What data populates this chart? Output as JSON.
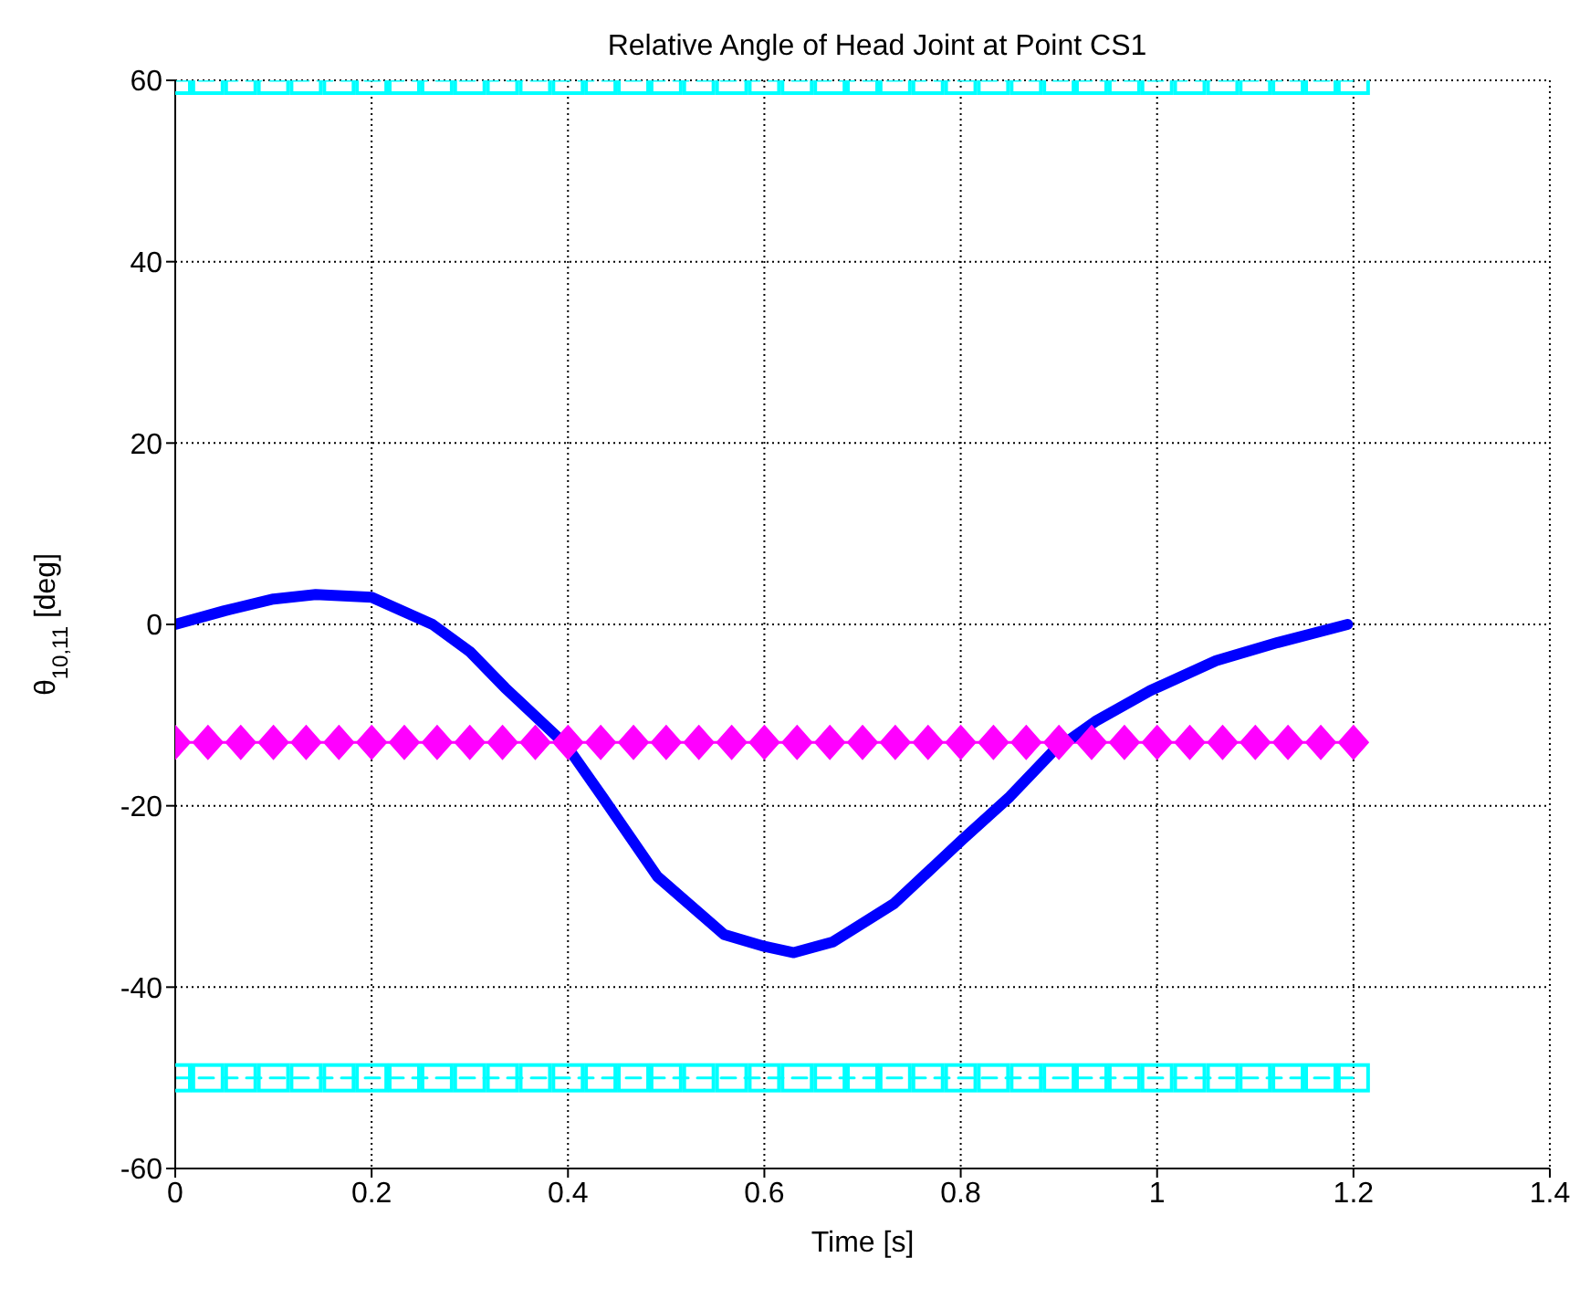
{
  "chart_data": {
    "type": "line",
    "title": "Relative Angle of Head Joint at Point CS1",
    "xlabel": "Time [s]",
    "ylabel": "θ$_{10,11}$ [deg]",
    "xlim": [
      0,
      1.4
    ],
    "xticks": [
      0,
      0.2,
      0.4,
      0.6,
      0.8,
      1,
      1.2,
      1.4
    ],
    "ylim": [
      -60,
      60
    ],
    "yticks": [
      -60,
      -40,
      -20,
      0,
      20,
      40,
      60
    ],
    "grid": true,
    "series": [
      {
        "color": "#0000ff",
        "marker": "none",
        "line_style": "solid",
        "x": [
          0,
          0.05,
          0.1,
          0.143,
          0.2,
          0.262,
          0.3,
          0.336,
          0.398,
          0.435,
          0.491,
          0.559,
          0.6,
          0.63,
          0.67,
          0.732,
          0.801,
          0.85,
          0.894,
          0.937,
          0.993,
          1.06,
          1.123,
          1.194
        ],
        "values": [
          0,
          1.5,
          2.8,
          3.3,
          3,
          0,
          -3,
          -7,
          -13.3,
          -19,
          -27.8,
          -34.2,
          -35.5,
          -36.2,
          -35,
          -30.8,
          -23.8,
          -19,
          -14,
          -10.7,
          -7.3,
          -4,
          -2,
          0
        ]
      },
      {
        "color": "#00ffff",
        "marker": "square",
        "line_style": "dashed",
        "x": [
          0,
          0.0333,
          0.0667,
          0.1,
          0.1333,
          0.1667,
          0.2,
          0.2333,
          0.2667,
          0.3,
          0.3333,
          0.3667,
          0.4,
          0.4333,
          0.4667,
          0.5,
          0.5333,
          0.5667,
          0.6,
          0.6333,
          0.6667,
          0.7,
          0.7333,
          0.7667,
          0.8,
          0.8333,
          0.8667,
          0.9,
          0.9333,
          0.9667,
          1,
          1.0333,
          1.0667,
          1.1,
          1.1333,
          1.1667,
          1.2
        ],
        "values": [
          60,
          60,
          60,
          60,
          60,
          60,
          60,
          60,
          60,
          60,
          60,
          60,
          60,
          60,
          60,
          60,
          60,
          60,
          60,
          60,
          60,
          60,
          60,
          60,
          60,
          60,
          60,
          60,
          60,
          60,
          60,
          60,
          60,
          60,
          60,
          60,
          60
        ]
      },
      {
        "color": "#00ffff",
        "marker": "square",
        "line_style": "dashed",
        "x": [
          0,
          0.0333,
          0.0667,
          0.1,
          0.1333,
          0.1667,
          0.2,
          0.2333,
          0.2667,
          0.3,
          0.3333,
          0.3667,
          0.4,
          0.4333,
          0.4667,
          0.5,
          0.5333,
          0.5667,
          0.6,
          0.6333,
          0.6667,
          0.7,
          0.7333,
          0.7667,
          0.8,
          0.8333,
          0.8667,
          0.9,
          0.9333,
          0.9667,
          1,
          1.0333,
          1.0667,
          1.1,
          1.1333,
          1.1667,
          1.2
        ],
        "values": [
          -50,
          -50,
          -50,
          -50,
          -50,
          -50,
          -50,
          -50,
          -50,
          -50,
          -50,
          -50,
          -50,
          -50,
          -50,
          -50,
          -50,
          -50,
          -50,
          -50,
          -50,
          -50,
          -50,
          -50,
          -50,
          -50,
          -50,
          -50,
          -50,
          -50,
          -50,
          -50,
          -50,
          -50,
          -50,
          -50,
          -50
        ]
      },
      {
        "color": "#ff00ff",
        "marker": "diamond",
        "line_style": "solid",
        "x": [
          0,
          0.0333,
          0.0667,
          0.1,
          0.1333,
          0.1667,
          0.2,
          0.2333,
          0.2667,
          0.3,
          0.3333,
          0.3667,
          0.4,
          0.4333,
          0.4667,
          0.5,
          0.5333,
          0.5667,
          0.6,
          0.6333,
          0.6667,
          0.7,
          0.7333,
          0.7667,
          0.8,
          0.8333,
          0.8667,
          0.9,
          0.9333,
          0.9667,
          1,
          1.0333,
          1.0667,
          1.1,
          1.1333,
          1.1667,
          1.2
        ],
        "values": [
          -13,
          -13,
          -13,
          -13,
          -13,
          -13,
          -13,
          -13,
          -13,
          -13,
          -13,
          -13,
          -13,
          -13,
          -13,
          -13,
          -13,
          -13,
          -13,
          -13,
          -13,
          -13,
          -13,
          -13,
          -13,
          -13,
          -13,
          -13,
          -13,
          -13,
          -13,
          -13,
          -13,
          -13,
          -13,
          -13,
          -13
        ]
      }
    ]
  }
}
